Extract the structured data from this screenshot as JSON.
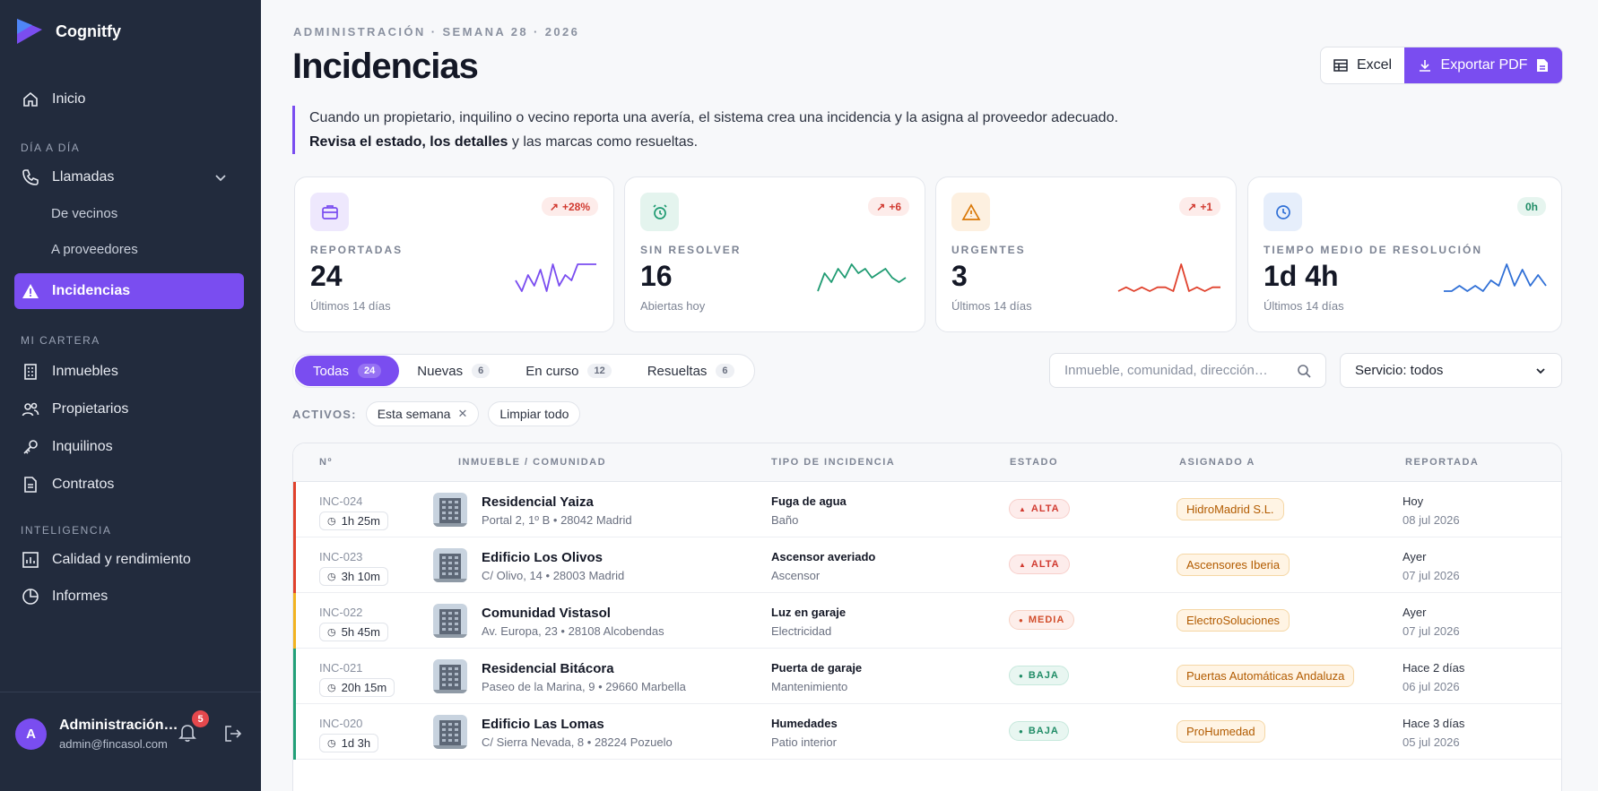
{
  "app": {
    "name": "Cognitfy"
  },
  "sidebar": {
    "home": "Inicio",
    "section_daily": "DÍA A DÍA",
    "calls": "Llamadas",
    "calls_sub": [
      "De vecinos",
      "A proveedores"
    ],
    "incidents": "Incidencias",
    "section_portfolio": "MI CARTERA",
    "portfolio": [
      "Inmuebles",
      "Propietarios",
      "Inquilinos",
      "Contratos"
    ],
    "section_intel": "INTELIGENCIA",
    "intel": [
      "Calidad y rendimiento",
      "Informes"
    ],
    "user": {
      "initial": "A",
      "name": "Administración…",
      "email": "admin@fincasol.com",
      "notifications": "5"
    }
  },
  "header": {
    "eyebrow": "ADMINISTRACIÓN · SEMANA 28 · 2026",
    "title": "Incidencias",
    "excel_label": "Excel",
    "pdf_label": "Exportar PDF"
  },
  "intro": {
    "line1": "Cuando un propietario, inquilino o vecino reporta una avería, el sistema crea una incidencia y la asigna al proveedor adecuado.",
    "bold": "Revisa el estado, los detalles",
    "line2_rest": " y las marcas como resueltas."
  },
  "kpis": [
    {
      "label": "REPORTADAS",
      "value": "24",
      "sub": "Últimos 14 días",
      "trend": "+28%",
      "color": "#7a4df0",
      "spark": [
        5,
        3,
        6,
        4,
        7,
        3,
        8,
        4,
        6,
        5,
        8,
        8,
        8,
        8
      ]
    },
    {
      "label": "SIN RESOLVER",
      "value": "16",
      "sub": "Abiertas hoy",
      "trend": "+6",
      "color": "#1f9b72",
      "spark": [
        2,
        6,
        4,
        7,
        5,
        8,
        6,
        7,
        5,
        6,
        7,
        5,
        4,
        5
      ]
    },
    {
      "label": "URGENTES",
      "value": "3",
      "sub": "Últimos 14 días",
      "trend": "+1",
      "color": "#e0412c",
      "spark": [
        2,
        3,
        2,
        3,
        2,
        3,
        3,
        2,
        9,
        2,
        3,
        2,
        3,
        3
      ]
    },
    {
      "label": "TIEMPO MEDIO DE RESOLUCIÓN",
      "value": "1d 4h",
      "sub": "Últimos 14 días",
      "trend": "0h",
      "color": "#2f6fd6",
      "spark": [
        2,
        2,
        3,
        2,
        3,
        2,
        4,
        3,
        7,
        3,
        6,
        3,
        5,
        3
      ]
    }
  ],
  "filters": {
    "tabs": [
      {
        "label": "Todas",
        "count": "24"
      },
      {
        "label": "Nuevas",
        "count": "6"
      },
      {
        "label": "En curso",
        "count": "12"
      },
      {
        "label": "Resueltas",
        "count": "6"
      }
    ],
    "search_placeholder": "Inmueble, comunidad, dirección…",
    "service_select": "Servicio: todos",
    "active_label": "ACTIVOS:",
    "chip": "Esta semana",
    "clear": "Limpiar todo"
  },
  "table": {
    "headers": [
      "Nº",
      "INMUEBLE / COMUNIDAD",
      "TIPO DE INCIDENCIA",
      "ESTADO",
      "ASIGNADO A",
      "REPORTADA"
    ],
    "rows": [
      {
        "id": "INC-024",
        "age": "1h 25m",
        "name": "Residencial Yaiza",
        "addr": "Portal 2, 1º B",
        "cp": "28042 Madrid",
        "type": "Fuga de agua",
        "type_sub": "Baño",
        "status": "ALTA",
        "assignee": "HidroMadrid S.L.",
        "when": "Hoy",
        "date": "08 jul 2026",
        "accent": "#e0412c"
      },
      {
        "id": "INC-023",
        "age": "3h 10m",
        "name": "Edificio Los Olivos",
        "addr": "C/ Olivo, 14",
        "cp": "28003 Madrid",
        "type": "Ascensor averiado",
        "type_sub": "Ascensor",
        "status": "ALTA",
        "assignee": "Ascensores Iberia",
        "when": "Ayer",
        "date": "07 jul 2026",
        "accent": "#e0412c"
      },
      {
        "id": "INC-022",
        "age": "5h 45m",
        "name": "Comunidad Vistasol",
        "addr": "Av. Europa, 23",
        "cp": "28108 Alcobendas",
        "type": "Luz en garaje",
        "type_sub": "Electricidad",
        "status": "MEDIA",
        "assignee": "ElectroSoluciones",
        "when": "Ayer",
        "date": "07 jul 2026",
        "accent": "#f2b320"
      },
      {
        "id": "INC-021",
        "age": "20h 15m",
        "name": "Residencial Bitácora",
        "addr": "Paseo de la Marina, 9",
        "cp": "29660 Marbella",
        "type": "Puerta de garaje",
        "type_sub": "Mantenimiento",
        "status": "BAJA",
        "assignee": "Puertas Automáticas Andaluza",
        "when": "Hace 2 días",
        "date": "06 jul 2026",
        "accent": "#22a078"
      },
      {
        "id": "INC-020",
        "age": "1d 3h",
        "name": "Edificio Las Lomas",
        "addr": "C/ Sierra Nevada, 8",
        "cp": "28224 Pozuelo",
        "type": "Humedades",
        "type_sub": "Patio interior",
        "status": "BAJA",
        "assignee": "ProHumedad",
        "when": "Hace 3 días",
        "date": "05 jul 2026",
        "accent": "#22a078"
      }
    ]
  }
}
